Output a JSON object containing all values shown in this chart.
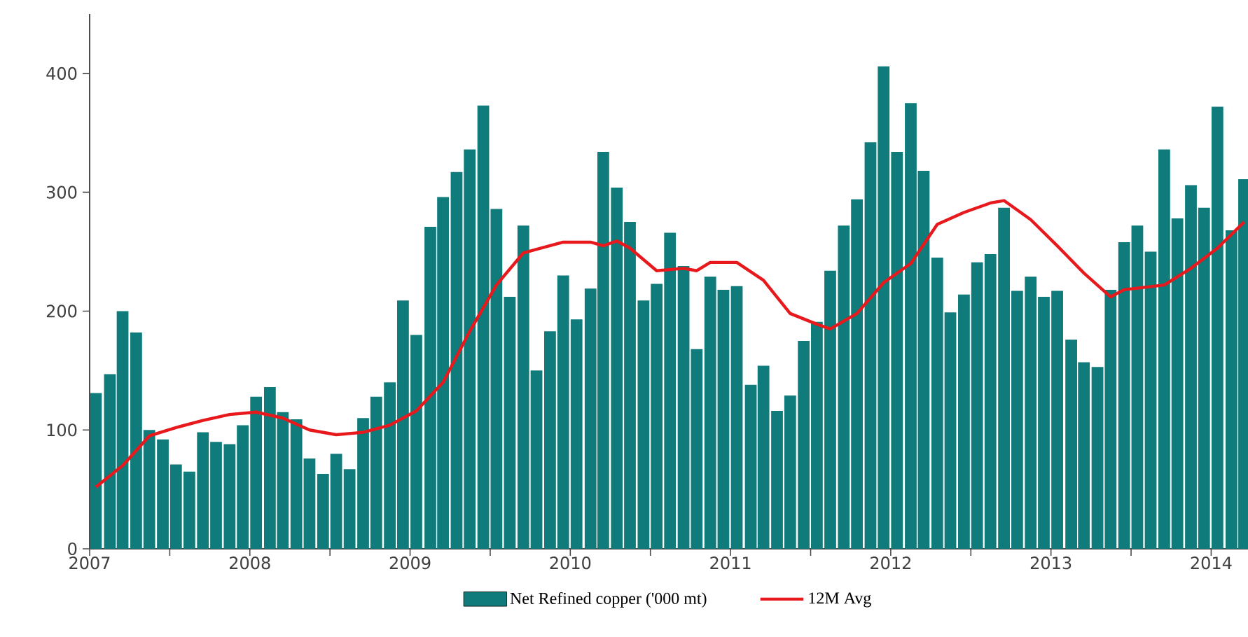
{
  "chart_data": {
    "type": "bar",
    "x": [
      "2007-01-15",
      "2007-02-15",
      "2007-03-15",
      "2007-04-15",
      "2007-05-15",
      "2007-06-15",
      "2007-07-15",
      "2007-08-15",
      "2007-09-15",
      "2007-10-15",
      "2007-11-15",
      "2007-12-15",
      "2008-01-15",
      "2008-02-15",
      "2008-03-15",
      "2008-04-15",
      "2008-05-15",
      "2008-06-15",
      "2008-07-15",
      "2008-08-15",
      "2008-09-15",
      "2008-10-15",
      "2008-11-15",
      "2008-12-15",
      "2009-01-15",
      "2009-02-15",
      "2009-03-15",
      "2009-04-15",
      "2009-05-15",
      "2009-06-15",
      "2009-07-15",
      "2009-08-15",
      "2009-09-15",
      "2009-10-15",
      "2009-11-15",
      "2009-12-15",
      "2010-01-15",
      "2010-02-15",
      "2010-03-15",
      "2010-04-15",
      "2010-05-15",
      "2010-06-15",
      "2010-07-15",
      "2010-08-15",
      "2010-09-15",
      "2010-10-15",
      "2010-11-15",
      "2010-12-15",
      "2011-01-15",
      "2011-02-15",
      "2011-03-15",
      "2011-04-15",
      "2011-05-15",
      "2011-06-15",
      "2011-07-15",
      "2011-08-15",
      "2011-09-15",
      "2011-10-15",
      "2011-11-15",
      "2011-12-15",
      "2012-01-15",
      "2012-02-15",
      "2012-03-15",
      "2012-04-15",
      "2012-05-15",
      "2012-06-15",
      "2012-07-15",
      "2012-08-15",
      "2012-09-15",
      "2012-10-15",
      "2012-11-15",
      "2012-12-15",
      "2013-01-15",
      "2013-02-15",
      "2013-03-15",
      "2013-04-15",
      "2013-05-15",
      "2013-06-15",
      "2013-07-15",
      "2013-08-15",
      "2013-09-15",
      "2013-10-15",
      "2013-11-15",
      "2013-12-15",
      "2014-01-15",
      "2014-02-15",
      "2014-03-15"
    ],
    "series": [
      {
        "name": "Net Refined copper ('000 mt)",
        "color": "#0f7b7b",
        "values": [
          131,
          147,
          200,
          182,
          100,
          92,
          71,
          65,
          98,
          90,
          88,
          104,
          128,
          136,
          115,
          109,
          76,
          63,
          80,
          67,
          110,
          128,
          140,
          209,
          180,
          271,
          296,
          317,
          336,
          373,
          286,
          212,
          272,
          150,
          183,
          230,
          193,
          219,
          334,
          304,
          275,
          209,
          223,
          266,
          238,
          168,
          229,
          218,
          221,
          138,
          154,
          116,
          129,
          175,
          191,
          234,
          272,
          294,
          342,
          406,
          334,
          375,
          318,
          245,
          199,
          214,
          241,
          248,
          287,
          217,
          229,
          212,
          217,
          176,
          157,
          153,
          218,
          258,
          272,
          250,
          336,
          278,
          306,
          287,
          372,
          268,
          311
        ]
      },
      {
        "name": "12M Avg",
        "type": "line",
        "color": "#e8191c",
        "x": [
          "2007-01-15",
          "2007-03-15",
          "2007-05-15",
          "2007-07-15",
          "2007-09-15",
          "2007-11-15",
          "2008-01-15",
          "2008-03-15",
          "2008-05-15",
          "2008-07-15",
          "2008-09-15",
          "2008-11-15",
          "2009-01-15",
          "2009-03-15",
          "2009-05-15",
          "2009-07-15",
          "2009-09-15",
          "2009-12-15",
          "2010-02-15",
          "2010-03-15",
          "2010-04-15",
          "2010-05-15",
          "2010-07-15",
          "2010-09-15",
          "2010-10-15",
          "2010-11-15",
          "2011-01-15",
          "2011-03-15",
          "2011-05-15",
          "2011-07-15",
          "2011-08-15",
          "2011-10-15",
          "2011-12-15",
          "2012-02-15",
          "2012-04-15",
          "2012-06-15",
          "2012-08-15",
          "2012-09-15",
          "2012-11-15",
          "2013-01-15",
          "2013-03-15",
          "2013-05-15",
          "2013-06-15",
          "2013-09-15",
          "2013-11-15",
          "2014-01-15",
          "2014-03-15"
        ],
        "values": [
          52,
          70,
          95,
          102,
          108,
          113,
          115,
          110,
          100,
          96,
          98,
          104,
          116,
          140,
          183,
          222,
          249,
          258,
          258,
          255,
          259,
          253,
          234,
          236,
          234,
          241,
          241,
          226,
          198,
          189,
          185,
          198,
          224,
          240,
          273,
          283,
          291,
          293,
          277,
          255,
          232,
          212,
          218,
          222,
          236,
          253,
          275
        ]
      }
    ],
    "xlim": [
      "2007-01",
      "2014-03-24"
    ],
    "xticks": [
      {
        "value": "2007-01",
        "label": "2007"
      },
      {
        "value": "2007-07",
        "label": null
      },
      {
        "value": "2008-01",
        "label": "2008"
      },
      {
        "value": "2008-07",
        "label": null
      },
      {
        "value": "2009-01",
        "label": "2009"
      },
      {
        "value": "2009-07",
        "label": null
      },
      {
        "value": "2010-01",
        "label": "2010"
      },
      {
        "value": "2010-07",
        "label": null
      },
      {
        "value": "2011-01",
        "label": "2011"
      },
      {
        "value": "2011-07",
        "label": null
      },
      {
        "value": "2012-01",
        "label": "2012"
      },
      {
        "value": "2012-07",
        "label": null
      },
      {
        "value": "2013-01",
        "label": "2013"
      },
      {
        "value": "2013-07",
        "label": null
      },
      {
        "value": "2014-01",
        "label": "2014"
      }
    ],
    "ylim": [
      0,
      450
    ],
    "yticks": [
      0,
      100,
      200,
      300,
      400
    ],
    "legend": "bottom",
    "marker": "none"
  }
}
